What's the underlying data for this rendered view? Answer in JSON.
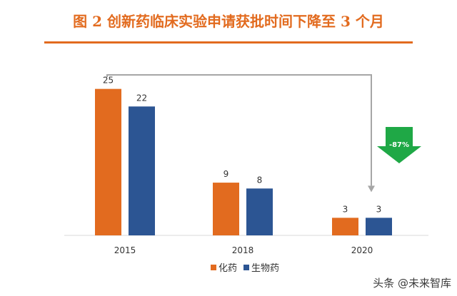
{
  "title": "图 2 创新药临床实验申请获批时间下降至 3 个月",
  "watermark": "头条 @未来智库",
  "colors": {
    "accent": "#e26b1f",
    "series_1": "#e26b1f",
    "series_2": "#2c5593",
    "arrow_badge": "#1fa846",
    "connector": "#a6a6a6"
  },
  "chart_data": {
    "type": "bar",
    "categories": [
      "2015",
      "2018",
      "2020"
    ],
    "series": [
      {
        "name": "化药",
        "values": [
          25,
          9,
          3
        ]
      },
      {
        "name": "生物药",
        "values": [
          22,
          8,
          3
        ]
      }
    ],
    "title": "",
    "xlabel": "",
    "ylabel": "",
    "ylim": [
      0,
      28
    ],
    "grid": false,
    "legend": "bottom",
    "annotations": [
      {
        "text": "-87%",
        "type": "down-arrow",
        "from": "2015",
        "to": "2020"
      }
    ]
  }
}
